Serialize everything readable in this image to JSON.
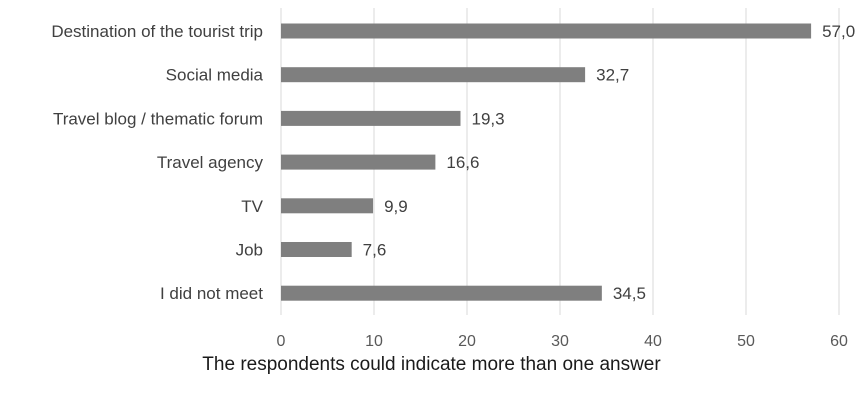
{
  "chart_data": {
    "type": "bar",
    "orientation": "horizontal",
    "categories": [
      "Destination of the tourist trip",
      "Social media",
      "Travel blog / thematic forum",
      "Travel agency",
      "TV",
      "Job",
      "I did not meet"
    ],
    "values": [
      57.0,
      32.7,
      19.3,
      16.6,
      9.9,
      7.6,
      34.5
    ],
    "value_labels": [
      "57,0",
      "32,7",
      "19,3",
      "16,6",
      "9,9",
      "7,6",
      "34,5"
    ],
    "xlim": [
      0,
      60
    ],
    "x_ticks": [
      "0",
      "10",
      "20",
      "30",
      "40",
      "50",
      "60"
    ],
    "grid": true,
    "bar_color": "#7f7f7f",
    "grid_color": "#d9d9d9"
  },
  "note": "The respondents could indicate more than one answer"
}
